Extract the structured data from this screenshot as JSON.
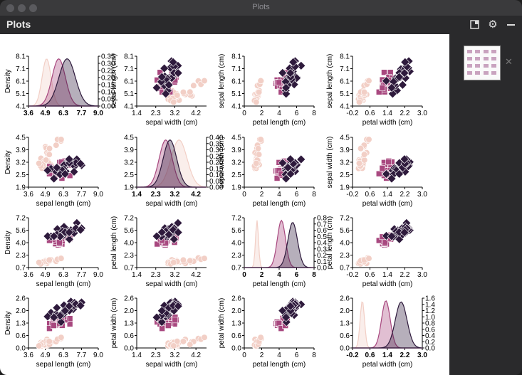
{
  "window": {
    "title": "Plots"
  },
  "panel": {
    "title": "Plots"
  },
  "toolbar": {
    "open_icon": "open-in-window-icon",
    "settings_icon": "gear-icon",
    "minimize_icon": "minimize-icon"
  },
  "sidebar": {
    "thumbnail_icon": "pairplot-thumbnail",
    "close_icon": "close-icon"
  },
  "chart_data": {
    "type": "scatter",
    "kind": "pairplot",
    "variables": [
      "sepal length (cm)",
      "sepal width (cm)",
      "petal length (cm)",
      "petal width (cm)"
    ],
    "ticks": {
      "sepal length (cm)": [
        "4.1",
        "5.1",
        "6.1",
        "7.1",
        "8.1"
      ],
      "sepal width (cm)": [
        "1.9",
        "2.5",
        "3.2",
        "3.9",
        "4.5"
      ],
      "petal length (cm)": [
        "0.7",
        "2.3",
        "4.0",
        "5.6",
        "7.2"
      ],
      "petal width (cm)": [
        "0.0",
        "0.6",
        "1.3",
        "2.0",
        "2.6"
      ]
    },
    "xticks": {
      "sepal length (cm)": [
        "3.6",
        "4.9",
        "6.3",
        "7.7",
        "9.0"
      ],
      "sepal width (cm)": [
        "1.4",
        "2.3",
        "3.2",
        "4.2"
      ],
      "petal length (cm)": [
        "0",
        "2",
        "4",
        "6",
        "8"
      ],
      "petal width (cm)": [
        "-0.2",
        "0.6",
        "1.4",
        "2.2",
        "3.0"
      ]
    },
    "density_label": "Density",
    "density_ticks": [
      [
        "0.00",
        "0.05",
        "0.10",
        "0.15",
        "0.20",
        "0.25",
        "0.30",
        "0.35"
      ],
      [
        "0.00",
        "0.05",
        "0.10",
        "0.15",
        "0.20",
        "0.25",
        "0.30",
        "0.35",
        "0.40"
      ],
      [
        "0.0",
        "0.1",
        "0.2",
        "0.3",
        "0.4",
        "0.5",
        "0.6",
        "0.7",
        "0.8"
      ],
      [
        "0.0",
        "0.2",
        "0.4",
        "0.6",
        "0.8",
        "1.0",
        "1.2",
        "1.4",
        "1.6"
      ]
    ],
    "series": [
      {
        "marker": "circle",
        "color": "#f2cfc6",
        "means": {
          "sepal length (cm)": 5.0,
          "sepal width (cm)": 3.4,
          "petal length (cm)": 1.46,
          "petal width (cm)": 0.25
        },
        "sds": {
          "sepal length (cm)": 0.35,
          "sepal width (cm)": 0.38,
          "petal length (cm)": 0.17,
          "petal width (cm)": 0.1
        }
      },
      {
        "marker": "square",
        "color": "#a8487f",
        "means": {
          "sepal length (cm)": 5.94,
          "sepal width (cm)": 2.77,
          "petal length (cm)": 4.26,
          "petal width (cm)": 1.33
        },
        "sds": {
          "sepal length (cm)": 0.52,
          "sepal width (cm)": 0.31,
          "petal length (cm)": 0.47,
          "petal width (cm)": 0.2
        }
      },
      {
        "marker": "diamond",
        "color": "#2e1a3c",
        "means": {
          "sepal length (cm)": 6.59,
          "sepal width (cm)": 2.97,
          "petal length (cm)": 5.55,
          "petal width (cm)": 2.03
        },
        "sds": {
          "sepal length (cm)": 0.64,
          "sepal width (cm)": 0.32,
          "petal length (cm)": 0.55,
          "petal width (cm)": 0.27
        }
      }
    ],
    "grid": false
  }
}
